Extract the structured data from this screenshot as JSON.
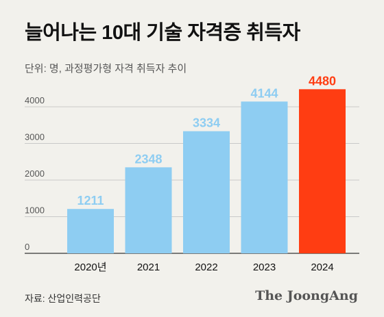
{
  "header": {
    "title": "늘어나는 10대 기술 자격증 취득자",
    "subtitle": "단위: 명, 과정평가형 자격 취득자 추이"
  },
  "footer": {
    "source": "자료: 산업인력공단",
    "logo": "The JoongAng"
  },
  "colors": {
    "bar": "#8ecdf2",
    "highlight": "#ff3d12",
    "background": "#f2f1ec",
    "grid": "#c9c9c9"
  },
  "chart_data": {
    "type": "bar",
    "categories": [
      "2020년",
      "2021",
      "2022",
      "2023",
      "2024"
    ],
    "values": [
      1211,
      2348,
      3334,
      4144,
      4480
    ],
    "highlight_index": 4,
    "yticks": [
      0,
      1000,
      2000,
      3000,
      4000
    ],
    "ylim": [
      0,
      4600
    ],
    "grid": true
  }
}
